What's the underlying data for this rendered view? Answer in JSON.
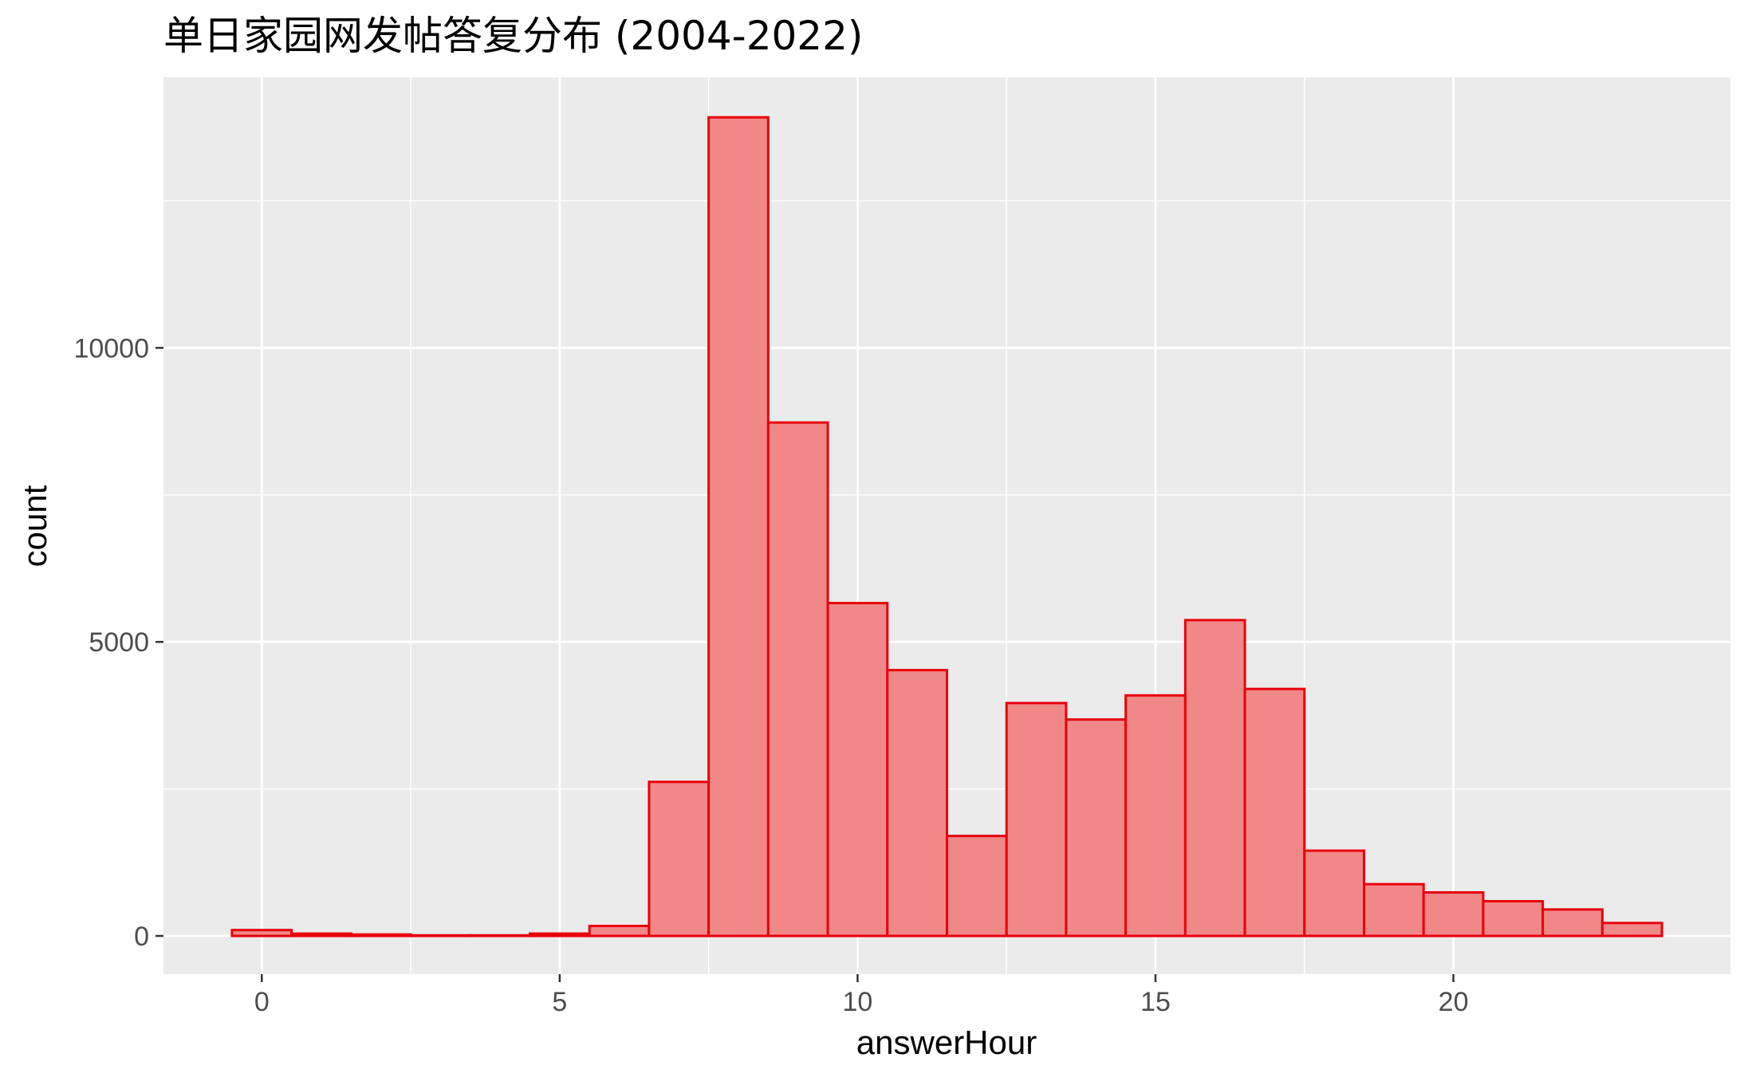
{
  "chart_data": {
    "type": "bar",
    "title": "单日家园网发帖答复分布 (2004-2022)",
    "xlabel": "answerHour",
    "ylabel": "count",
    "bin_width": 1,
    "x": [
      0,
      1,
      2,
      3,
      4,
      5,
      6,
      7,
      8,
      9,
      10,
      11,
      12,
      13,
      14,
      15,
      16,
      17,
      18,
      19,
      20,
      21,
      22,
      23
    ],
    "values": [
      100,
      40,
      25,
      10,
      10,
      40,
      170,
      2620,
      13920,
      8730,
      5660,
      4520,
      1700,
      3960,
      3680,
      4090,
      5370,
      4200,
      1450,
      880,
      740,
      590,
      450,
      220
    ],
    "xlim": [
      -1.65,
      24.65
    ],
    "ylim": [
      -650,
      14600
    ],
    "xticks": [
      0,
      5,
      10,
      15,
      20
    ],
    "xtick_labels": [
      "0",
      "5",
      "10",
      "15",
      "20"
    ],
    "yticks": [
      0,
      5000,
      10000
    ],
    "ytick_labels": [
      "0",
      "5000",
      "10000"
    ],
    "grid": true,
    "colors": {
      "panel_background": "#ebebeb",
      "grid_major": "#ffffff",
      "bar_fill": "#f08888",
      "bar_outline": "#e8000b",
      "tick_mark": "#333333",
      "tick_label": "#4d4d4d"
    }
  }
}
